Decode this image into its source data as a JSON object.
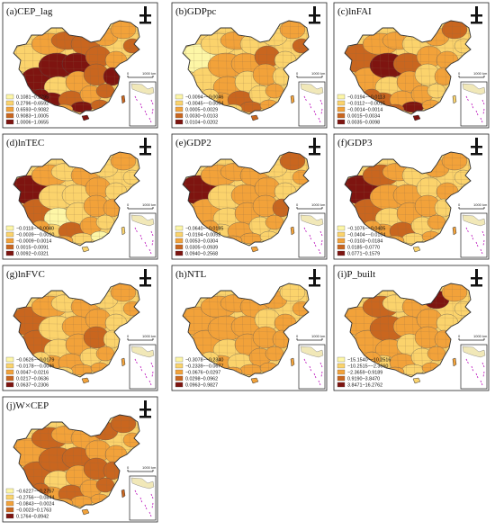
{
  "palette": [
    "#fdf6a6",
    "#fbd36c",
    "#f2a23a",
    "#c9661f",
    "#7e1410"
  ],
  "outline_color": "#555555",
  "scale_label": "1000 km",
  "scale_zero": "0",
  "panels": [
    {
      "title": "(a)CEP_lag",
      "legend": [
        "0.1081~0.2795",
        "0.2796~0.6592",
        "0.6593~0.9082",
        "0.9083~1.0005",
        "1.0006~1.0655"
      ]
    },
    {
      "title": "(b)GDPpc",
      "legend": [
        "−0.0094~−0.0046",
        "−0.0045~−0.0004",
        "0.0005~0.0029",
        "0.0030~0.0103",
        "0.0104~0.0202"
      ]
    },
    {
      "title": "(c)lnFAI",
      "legend": [
        "−0.0194~−0.0113",
        "−0.0112~−0.0015",
        "−0.0014~0.0014",
        "0.0015~0.0034",
        "0.0035~0.0098"
      ]
    },
    {
      "title": "(d)lnTEC",
      "legend": [
        "−0.0118~−0.0040",
        "−0.0039~−0.0010",
        "−0.0009~0.0014",
        "0.0015~0.0091",
        "0.0092~0.0321"
      ]
    },
    {
      "title": "(e)GDP2",
      "legend": [
        "−0.0640~−0.0195",
        "−0.0194~0.0052",
        "0.0053~0.0304",
        "0.0305~0.0939",
        "0.0940~0.2568"
      ]
    },
    {
      "title": "(f)GDP3",
      "legend": [
        "−0.1076~−0.0405",
        "−0.0404~−0.0104",
        "−0.0103~0.0184",
        "0.0185~0.0770",
        "0.0771~0.1579"
      ]
    },
    {
      "title": "(g)lnFVC",
      "legend": [
        "−0.0626~−0.0179",
        "−0.0178~−0.0046",
        "0.0047~0.0216",
        "0.0217~0.0636",
        "0.0637~0.2306"
      ]
    },
    {
      "title": "(h)NTL",
      "legend": [
        "−0.3078~−0.2340",
        "−0.2339~−0.0677",
        "−0.0676~0.0297",
        "0.0298~0.0962",
        "0.0963~0.9827"
      ]
    },
    {
      "title": "(i)P_built",
      "legend": [
        "−15.1540~−10.2516",
        "−10.2515~−2.3660",
        "−2.3659~0.9189",
        "0.9190~3.8470",
        "3.8471~16.2762"
      ]
    },
    {
      "title": "(j)W×CEP",
      "legend": [
        "−0.6227~−0.2757",
        "−0.2756~−0.0844",
        "−0.0843~−0.0024",
        "−0.0023~0.1763",
        "0.1764~0.8942"
      ]
    }
  ],
  "region_patterns": [
    [
      1,
      2,
      3,
      3,
      2,
      2,
      3,
      4,
      4,
      4,
      3,
      2,
      1,
      2,
      3,
      4,
      4,
      3,
      2,
      3,
      4,
      4,
      3,
      2
    ],
    [
      0,
      1,
      2,
      1,
      1,
      2,
      3,
      1,
      2,
      2,
      3,
      1,
      2,
      1,
      2,
      1,
      2,
      3,
      1,
      2,
      1,
      3,
      2,
      1
    ],
    [
      3,
      2,
      2,
      1,
      2,
      3,
      1,
      2,
      4,
      3,
      2,
      2,
      1,
      2,
      1,
      2,
      3,
      2,
      2,
      1,
      3,
      4,
      2,
      3
    ],
    [
      4,
      2,
      1,
      2,
      1,
      2,
      1,
      3,
      1,
      1,
      2,
      1,
      0,
      1,
      2,
      2,
      1,
      3,
      2,
      1,
      2,
      1,
      0,
      2
    ],
    [
      4,
      2,
      2,
      2,
      1,
      3,
      2,
      2,
      1,
      2,
      2,
      1,
      1,
      2,
      2,
      3,
      1,
      2,
      1,
      2,
      2,
      2,
      1,
      2
    ],
    [
      4,
      3,
      2,
      1,
      2,
      2,
      1,
      3,
      2,
      2,
      1,
      2,
      1,
      2,
      2,
      1,
      2,
      3,
      1,
      2,
      2,
      1,
      2,
      2
    ],
    [
      3,
      2,
      1,
      2,
      1,
      2,
      2,
      3,
      1,
      2,
      2,
      1,
      1,
      2,
      3,
      1,
      2,
      2,
      1,
      2,
      1,
      2,
      2,
      1
    ],
    [
      2,
      2,
      2,
      2,
      2,
      1,
      2,
      2,
      2,
      2,
      1,
      2,
      1,
      2,
      2,
      2,
      2,
      1,
      2,
      2,
      1,
      2,
      2,
      2
    ],
    [
      2,
      3,
      1,
      2,
      4,
      2,
      1,
      2,
      3,
      2,
      2,
      1,
      2,
      1,
      2,
      2,
      1,
      2,
      1,
      2,
      2,
      1,
      2,
      2
    ],
    [
      2,
      3,
      2,
      2,
      3,
      3,
      2,
      3,
      3,
      3,
      2,
      2,
      1,
      2,
      3,
      3,
      2,
      3,
      2,
      3,
      3,
      2,
      2,
      2
    ]
  ]
}
